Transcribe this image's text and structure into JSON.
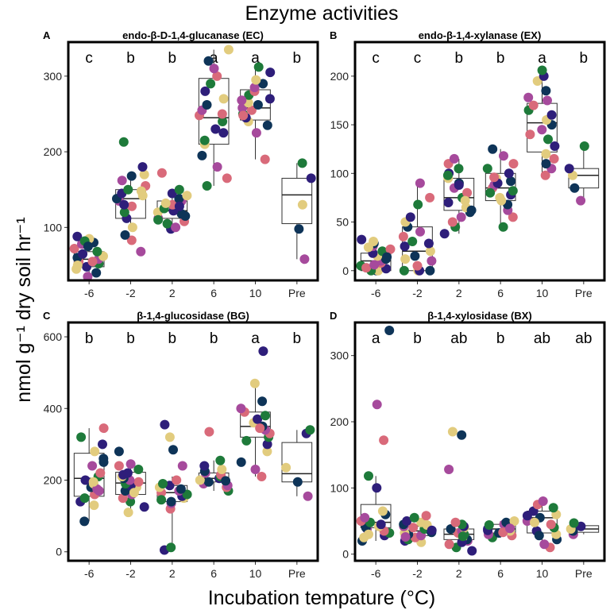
{
  "figure_title": "Enzyme activities",
  "y_axis_label": "nmol g⁻¹ dry soil hr⁻¹",
  "x_axis_label": "Incubation tempature (°C)",
  "point_colors": [
    "#0e3458",
    "#e2cc7e",
    "#2e1e7a",
    "#1e7a3a",
    "#d96a7a",
    "#a64a9c"
  ],
  "chart_data": [
    {
      "type": "box",
      "panel_letter": "A",
      "title": "endo-β-D-1,4-glucanase (EC)",
      "categories": [
        "-6",
        "-2",
        "2",
        "6",
        "10",
        "Pre"
      ],
      "y_ticks": [
        100,
        200,
        300
      ],
      "ylim": [
        30,
        345
      ],
      "significance": [
        "c",
        "b",
        "b",
        "a",
        "a",
        "b"
      ],
      "boxes": [
        {
          "q1": 48,
          "median": 58,
          "q3": 68,
          "wlow": 35,
          "whigh": 80
        },
        {
          "q1": 112,
          "median": 138,
          "q3": 150,
          "wlow": 98,
          "whigh": 162
        },
        {
          "q1": 112,
          "median": 122,
          "q3": 135,
          "wlow": 98,
          "whigh": 150
        },
        {
          "q1": 210,
          "median": 245,
          "q3": 297,
          "wlow": 155,
          "whigh": 335
        },
        {
          "q1": 242,
          "median": 258,
          "q3": 282,
          "wlow": 190,
          "whigh": 312
        },
        {
          "q1": 105,
          "median": 143,
          "q3": 165,
          "wlow": 58,
          "whigh": 185
        }
      ],
      "points": [
        [
          40,
          45,
          48,
          52,
          55,
          58,
          60,
          62,
          65,
          68,
          72,
          78,
          80,
          85,
          88,
          82,
          55,
          35,
          75,
          50
        ],
        [
          100,
          112,
          120,
          128,
          135,
          138,
          142,
          145,
          150,
          155,
          162,
          168,
          170,
          180,
          213,
          83,
          68,
          90,
          148,
          130
        ],
        [
          98,
          105,
          108,
          112,
          118,
          120,
          122,
          125,
          130,
          135,
          138,
          142,
          145,
          150,
          172,
          100,
          115,
          132,
          128,
          110
        ],
        [
          155,
          165,
          180,
          195,
          210,
          225,
          240,
          248,
          255,
          262,
          270,
          280,
          290,
          300,
          310,
          320,
          335,
          230,
          215,
          250
        ],
        [
          190,
          225,
          235,
          240,
          245,
          250,
          255,
          258,
          262,
          265,
          270,
          275,
          280,
          285,
          290,
          295,
          305,
          312,
          248,
          268
        ],
        [
          58,
          98,
          130,
          165,
          185
        ]
      ]
    },
    {
      "type": "box",
      "panel_letter": "B",
      "title": "endo-β-1,4-xylanase (EX)",
      "categories": [
        "-6",
        "-2",
        "2",
        "6",
        "10",
        "Pre"
      ],
      "y_ticks": [
        0,
        50,
        100,
        150,
        200
      ],
      "ylim": [
        -10,
        235
      ],
      "significance": [
        "c",
        "c",
        "b",
        "b",
        "a",
        "b"
      ],
      "boxes": [
        {
          "q1": 0,
          "median": 10,
          "q3": 18,
          "wlow": 0,
          "whigh": 32
        },
        {
          "q1": 0,
          "median": 20,
          "q3": 45,
          "wlow": 0,
          "whigh": 90
        },
        {
          "q1": 62,
          "median": 75,
          "q3": 95,
          "wlow": 38,
          "whigh": 115
        },
        {
          "q1": 72,
          "median": 85,
          "q3": 100,
          "wlow": 45,
          "whigh": 125
        },
        {
          "q1": 122,
          "median": 152,
          "q3": 172,
          "wlow": 98,
          "whigh": 205
        },
        {
          "q1": 85,
          "median": 98,
          "q3": 105,
          "wlow": 72,
          "whigh": 128
        }
      ],
      "points": [
        [
          0,
          0,
          2,
          5,
          8,
          10,
          12,
          15,
          18,
          20,
          22,
          25,
          28,
          30,
          32,
          0,
          3,
          6,
          14,
          24
        ],
        [
          0,
          0,
          0,
          5,
          10,
          15,
          20,
          25,
          30,
          35,
          40,
          45,
          50,
          55,
          68,
          75,
          90,
          0,
          12,
          28
        ],
        [
          38,
          45,
          50,
          55,
          60,
          65,
          70,
          75,
          80,
          85,
          90,
          95,
          100,
          105,
          110,
          115,
          62,
          72,
          88,
          98
        ],
        [
          45,
          55,
          62,
          68,
          72,
          78,
          82,
          85,
          88,
          92,
          95,
          100,
          105,
          110,
          118,
          125,
          75,
          90,
          80,
          96
        ],
        [
          98,
          105,
          110,
          120,
          128,
          135,
          140,
          145,
          150,
          155,
          160,
          165,
          170,
          178,
          185,
          195,
          200,
          206,
          115,
          175
        ],
        [
          72,
          85,
          98,
          105,
          128
        ]
      ]
    },
    {
      "type": "box",
      "panel_letter": "C",
      "title": "β-1,4-glucosidase (BG)",
      "categories": [
        "-6",
        "-2",
        "2",
        "6",
        "10",
        "Pre"
      ],
      "y_ticks": [
        0,
        200,
        400,
        600
      ],
      "ylim": [
        -25,
        640
      ],
      "significance": [
        "b",
        "b",
        "b",
        "b",
        "a",
        "b"
      ],
      "boxes": [
        {
          "q1": 155,
          "median": 205,
          "q3": 275,
          "wlow": 85,
          "whigh": 345
        },
        {
          "q1": 160,
          "median": 192,
          "q3": 222,
          "wlow": 110,
          "whigh": 245
        },
        {
          "q1": 140,
          "median": 165,
          "q3": 185,
          "wlow": 10,
          "whigh": 210
        },
        {
          "q1": 195,
          "median": 205,
          "q3": 220,
          "wlow": 170,
          "whigh": 255
        },
        {
          "q1": 320,
          "median": 350,
          "q3": 390,
          "wlow": 210,
          "whigh": 470
        },
        {
          "q1": 195,
          "median": 218,
          "q3": 305,
          "wlow": 155,
          "whigh": 340
        }
      ],
      "points": [
        [
          85,
          130,
          140,
          150,
          160,
          170,
          180,
          190,
          200,
          210,
          220,
          240,
          260,
          280,
          300,
          320,
          345,
          175,
          250,
          195
        ],
        [
          110,
          125,
          140,
          150,
          160,
          170,
          180,
          185,
          190,
          195,
          200,
          205,
          210,
          220,
          230,
          240,
          245,
          280,
          165,
          215
        ],
        [
          5,
          12,
          120,
          135,
          140,
          150,
          155,
          160,
          165,
          170,
          175,
          180,
          185,
          190,
          200,
          240,
          285,
          320,
          355,
          145
        ],
        [
          170,
          180,
          190,
          195,
          200,
          205,
          210,
          215,
          220,
          225,
          230,
          240,
          255,
          335,
          185,
          198
        ],
        [
          210,
          230,
          250,
          280,
          300,
          320,
          330,
          340,
          350,
          360,
          370,
          380,
          390,
          400,
          420,
          470,
          560,
          310,
          345
        ],
        [
          155,
          195,
          235,
          330,
          340
        ]
      ]
    },
    {
      "type": "box",
      "panel_letter": "D",
      "title": "β-1,4-xylosidase (BX)",
      "categories": [
        "-6",
        "-2",
        "2",
        "6",
        "10",
        "Pre"
      ],
      "y_ticks": [
        0,
        100,
        200,
        300
      ],
      "ylim": [
        -10,
        350
      ],
      "significance": [
        "a",
        "b",
        "ab",
        "b",
        "ab",
        "ab"
      ],
      "boxes": [
        {
          "q1": 40,
          "median": 48,
          "q3": 75,
          "wlow": 20,
          "whigh": 118
        },
        {
          "q1": 28,
          "median": 35,
          "q3": 42,
          "wlow": 18,
          "whigh": 50
        },
        {
          "q1": 22,
          "median": 30,
          "q3": 38,
          "wlow": 8,
          "whigh": 48
        },
        {
          "q1": 32,
          "median": 38,
          "q3": 45,
          "wlow": 25,
          "whigh": 50
        },
        {
          "q1": 32,
          "median": 55,
          "q3": 65,
          "wlow": 10,
          "whigh": 80
        },
        {
          "q1": 33,
          "median": 38,
          "q3": 43,
          "wlow": 30,
          "whigh": 47
        }
      ],
      "points": [
        [
          20,
          25,
          28,
          32,
          35,
          38,
          40,
          42,
          45,
          48,
          50,
          55,
          60,
          65,
          100,
          118,
          172,
          226,
          338,
          30
        ],
        [
          18,
          20,
          22,
          25,
          28,
          30,
          32,
          35,
          38,
          40,
          42,
          45,
          48,
          50,
          55,
          58,
          26,
          33,
          44,
          36
        ],
        [
          5,
          10,
          15,
          20,
          22,
          25,
          28,
          30,
          32,
          35,
          38,
          40,
          42,
          45,
          48,
          128,
          180,
          185,
          18,
          27
        ],
        [
          25,
          28,
          30,
          32,
          35,
          38,
          40,
          42,
          45,
          48,
          50,
          36,
          44,
          33,
          39
        ],
        [
          10,
          15,
          22,
          30,
          35,
          40,
          45,
          50,
          55,
          60,
          65,
          70,
          75,
          80,
          28,
          48,
          58
        ],
        [
          30,
          35,
          38,
          42,
          47
        ]
      ]
    }
  ]
}
